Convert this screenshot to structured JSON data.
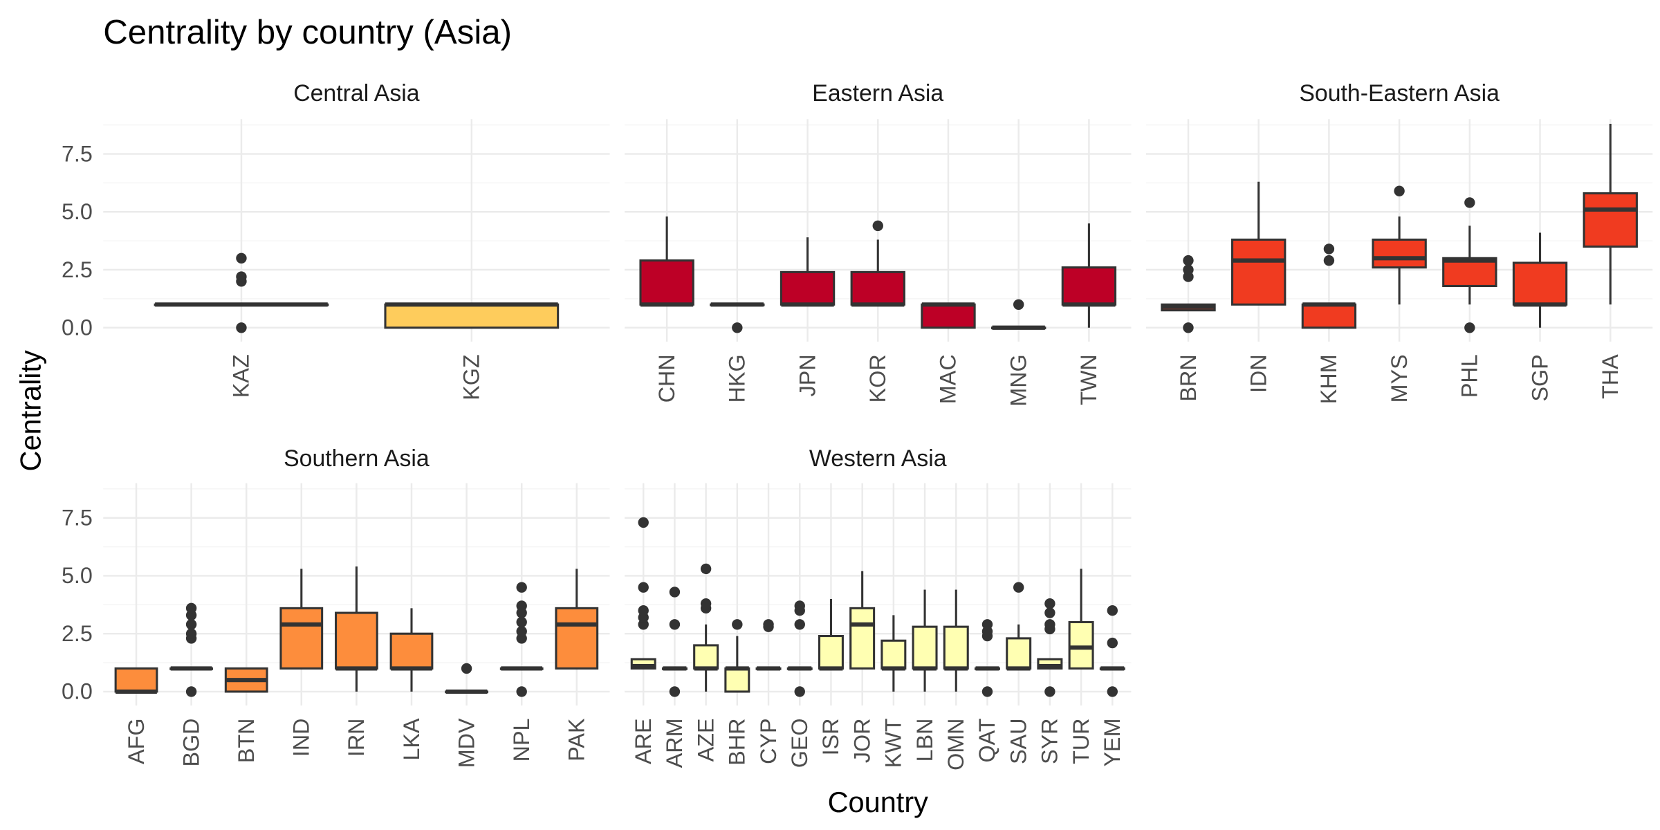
{
  "chart_data": {
    "type": "boxplot",
    "title": "Centrality by country (Asia)",
    "xlabel": "Country",
    "ylabel": "Centrality",
    "ylim": [
      -0.6,
      9.0
    ],
    "yticks": [
      0.0,
      2.5,
      5.0,
      7.5
    ],
    "ytick_labels": [
      "0.0",
      "2.5",
      "5.0",
      "7.5"
    ],
    "grid": true,
    "legend": "none",
    "panels": [
      {
        "name": "Central Asia",
        "color": "#FECC5C",
        "boxes": [
          {
            "country": "KAZ",
            "q1": 1,
            "median": 1,
            "q3": 1,
            "lower": 1,
            "upper": 1,
            "outliers": [
              0,
              2.0,
              2.2,
              3.0
            ]
          },
          {
            "country": "KGZ",
            "q1": 0,
            "median": 1,
            "q3": 1,
            "lower": 0,
            "upper": 1,
            "outliers": []
          }
        ]
      },
      {
        "name": "Eastern Asia",
        "color": "#BD0026",
        "boxes": [
          {
            "country": "CHN",
            "q1": 1,
            "median": 1,
            "q3": 2.9,
            "lower": 1,
            "upper": 4.8,
            "outliers": []
          },
          {
            "country": "HKG",
            "q1": 1,
            "median": 1,
            "q3": 1,
            "lower": 1,
            "upper": 1,
            "outliers": [
              0
            ]
          },
          {
            "country": "JPN",
            "q1": 1,
            "median": 1,
            "q3": 2.4,
            "lower": 1,
            "upper": 3.9,
            "outliers": []
          },
          {
            "country": "KOR",
            "q1": 1,
            "median": 1,
            "q3": 2.4,
            "lower": 1,
            "upper": 3.8,
            "outliers": [
              4.4
            ]
          },
          {
            "country": "MAC",
            "q1": 0,
            "median": 1,
            "q3": 1,
            "lower": 0,
            "upper": 1,
            "outliers": []
          },
          {
            "country": "MNG",
            "q1": 0,
            "median": 0,
            "q3": 0,
            "lower": 0,
            "upper": 0,
            "outliers": [
              1
            ]
          },
          {
            "country": "TWN",
            "q1": 1,
            "median": 1,
            "q3": 2.6,
            "lower": 0,
            "upper": 4.5,
            "outliers": []
          }
        ]
      },
      {
        "name": "South-Eastern Asia",
        "color": "#F03B20",
        "boxes": [
          {
            "country": "BRN",
            "q1": 0.75,
            "median": 0.9,
            "q3": 1.0,
            "lower": 0.75,
            "upper": 1.0,
            "outliers": [
              0,
              2.2,
              2.5,
              2.9
            ]
          },
          {
            "country": "IDN",
            "q1": 1,
            "median": 2.9,
            "q3": 3.8,
            "lower": 1,
            "upper": 6.3,
            "outliers": []
          },
          {
            "country": "KHM",
            "q1": 0,
            "median": 1,
            "q3": 1,
            "lower": 0,
            "upper": 1,
            "outliers": [
              2.9,
              3.4
            ]
          },
          {
            "country": "MYS",
            "q1": 2.6,
            "median": 3.0,
            "q3": 3.8,
            "lower": 1,
            "upper": 4.8,
            "outliers": [
              5.9
            ]
          },
          {
            "country": "PHL",
            "q1": 1.8,
            "median": 2.9,
            "q3": 3.0,
            "lower": 1,
            "upper": 4.4,
            "outliers": [
              0,
              5.4
            ]
          },
          {
            "country": "SGP",
            "q1": 1,
            "median": 1,
            "q3": 2.8,
            "lower": 0,
            "upper": 4.1,
            "outliers": []
          },
          {
            "country": "THA",
            "q1": 3.5,
            "median": 5.1,
            "q3": 5.8,
            "lower": 1,
            "upper": 8.8,
            "outliers": []
          }
        ]
      },
      {
        "name": "Southern Asia",
        "color": "#FD8D3C",
        "boxes": [
          {
            "country": "AFG",
            "q1": 0,
            "median": 0,
            "q3": 1,
            "lower": 0,
            "upper": 1,
            "outliers": []
          },
          {
            "country": "BGD",
            "q1": 1,
            "median": 1,
            "q3": 1,
            "lower": 1,
            "upper": 1,
            "outliers": [
              0,
              2.3,
              2.5,
              2.9,
              3.3,
              3.6
            ]
          },
          {
            "country": "BTN",
            "q1": 0,
            "median": 0.5,
            "q3": 1,
            "lower": 0,
            "upper": 1,
            "outliers": []
          },
          {
            "country": "IND",
            "q1": 1,
            "median": 2.9,
            "q3": 3.6,
            "lower": 1,
            "upper": 5.3,
            "outliers": []
          },
          {
            "country": "IRN",
            "q1": 1,
            "median": 1,
            "q3": 3.4,
            "lower": 0,
            "upper": 5.4,
            "outliers": []
          },
          {
            "country": "LKA",
            "q1": 1,
            "median": 1,
            "q3": 2.5,
            "lower": 0,
            "upper": 3.6,
            "outliers": []
          },
          {
            "country": "MDV",
            "q1": 0,
            "median": 0,
            "q3": 0,
            "lower": 0,
            "upper": 0,
            "outliers": [
              1
            ]
          },
          {
            "country": "NPL",
            "q1": 1,
            "median": 1,
            "q3": 1,
            "lower": 1,
            "upper": 1,
            "outliers": [
              0,
              2.3,
              2.6,
              3.0,
              3.4,
              3.7,
              4.5
            ]
          },
          {
            "country": "PAK",
            "q1": 1,
            "median": 2.9,
            "q3": 3.6,
            "lower": 1,
            "upper": 5.3,
            "outliers": []
          }
        ]
      },
      {
        "name": "Western Asia",
        "color": "#FFFFB2",
        "boxes": [
          {
            "country": "ARE",
            "q1": 1,
            "median": 1.1,
            "q3": 1.4,
            "lower": 1,
            "upper": 1.4,
            "outliers": [
              2.9,
              3.2,
              3.5,
              4.5,
              7.3
            ]
          },
          {
            "country": "ARM",
            "q1": 1,
            "median": 1,
            "q3": 1,
            "lower": 1,
            "upper": 1,
            "outliers": [
              0,
              2.9,
              4.3
            ]
          },
          {
            "country": "AZE",
            "q1": 1,
            "median": 1.0,
            "q3": 2.0,
            "lower": 0,
            "upper": 2.9,
            "outliers": [
              3.6,
              3.8,
              5.3
            ]
          },
          {
            "country": "BHR",
            "q1": 0,
            "median": 1,
            "q3": 1,
            "lower": 0,
            "upper": 2.4,
            "outliers": [
              2.9
            ]
          },
          {
            "country": "CYP",
            "q1": 1,
            "median": 1,
            "q3": 1,
            "lower": 1,
            "upper": 1,
            "outliers": [
              2.8,
              2.9
            ]
          },
          {
            "country": "GEO",
            "q1": 1,
            "median": 1,
            "q3": 1,
            "lower": 1,
            "upper": 1,
            "outliers": [
              0,
              2.9,
              3.5,
              3.7
            ]
          },
          {
            "country": "ISR",
            "q1": 1,
            "median": 1,
            "q3": 2.4,
            "lower": 1,
            "upper": 4.0,
            "outliers": []
          },
          {
            "country": "JOR",
            "q1": 1,
            "median": 2.9,
            "q3": 3.6,
            "lower": 1,
            "upper": 5.2,
            "outliers": []
          },
          {
            "country": "KWT",
            "q1": 1,
            "median": 1,
            "q3": 2.2,
            "lower": 0,
            "upper": 3.3,
            "outliers": []
          },
          {
            "country": "LBN",
            "q1": 1,
            "median": 1,
            "q3": 2.8,
            "lower": 0,
            "upper": 4.4,
            "outliers": []
          },
          {
            "country": "OMN",
            "q1": 1,
            "median": 1,
            "q3": 2.8,
            "lower": 0,
            "upper": 4.4,
            "outliers": []
          },
          {
            "country": "QAT",
            "q1": 1,
            "median": 1,
            "q3": 1,
            "lower": 1,
            "upper": 1,
            "outliers": [
              0,
              2.4,
              2.6,
              2.9
            ]
          },
          {
            "country": "SAU",
            "q1": 1,
            "median": 1,
            "q3": 2.3,
            "lower": 1,
            "upper": 2.9,
            "outliers": [
              4.5
            ]
          },
          {
            "country": "SYR",
            "q1": 1,
            "median": 1.1,
            "q3": 1.4,
            "lower": 1,
            "upper": 1.4,
            "outliers": [
              0,
              2.7,
              2.9,
              3.4,
              3.8
            ]
          },
          {
            "country": "TUR",
            "q1": 1,
            "median": 1.9,
            "q3": 3.0,
            "lower": 1,
            "upper": 5.3,
            "outliers": []
          },
          {
            "country": "YEM",
            "q1": 1,
            "median": 1,
            "q3": 1,
            "lower": 1,
            "upper": 1,
            "outliers": [
              0,
              2.1,
              3.5
            ]
          }
        ]
      }
    ]
  }
}
